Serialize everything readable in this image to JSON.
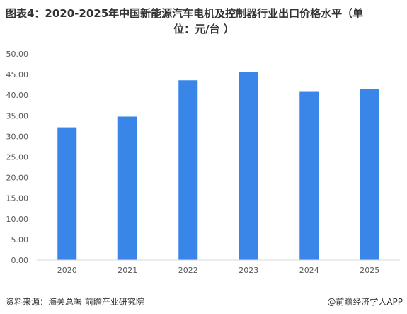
{
  "title": {
    "line1": "图表4：2020-2025年中国新能源汽车电机及控制器行业出口价格水平（单",
    "line2": "位：元/台 ）"
  },
  "footer": {
    "source": "资料来源：海关总署  前瞻产业研究院",
    "brand": "@前瞻经济学人APP"
  },
  "colors": {
    "bar": "#3a86e8",
    "axis": "#d9d9d9",
    "tick_text": "#595959"
  },
  "chart_data": {
    "type": "bar",
    "categories": [
      "2020",
      "2021",
      "2022",
      "2023",
      "2024",
      "2025"
    ],
    "values": [
      32.2,
      34.8,
      43.6,
      45.6,
      40.8,
      41.5
    ],
    "ylim": [
      0,
      50
    ],
    "yticks": [
      "0.00",
      "5.00",
      "10.00",
      "15.00",
      "20.00",
      "25.00",
      "30.00",
      "35.00",
      "40.00",
      "45.00",
      "50.00"
    ],
    "ytick_values": [
      0,
      5,
      10,
      15,
      20,
      25,
      30,
      35,
      40,
      45,
      50
    ],
    "grid": false,
    "xlabel": "",
    "ylabel": ""
  }
}
